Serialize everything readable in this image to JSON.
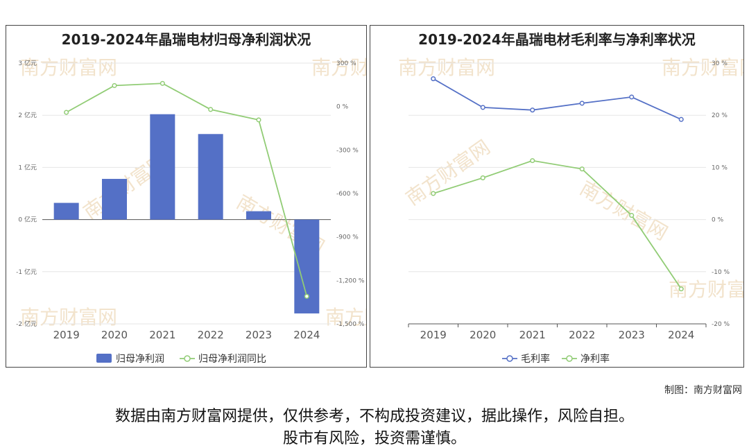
{
  "watermark": "南方财富网",
  "credit": "制图：南方财富网",
  "disclaimer_line1": "数据由南方财富网提供，仅供参考，不构成投资建议，据此操作，风险自担。",
  "disclaimer_line2": "股市有风险，投资需谨慎。",
  "chart_data": [
    {
      "type": "bar",
      "title": "2019-2024年晶瑞电材归母净利润状况",
      "categories": [
        "2019",
        "2020",
        "2021",
        "2022",
        "2023",
        "2024"
      ],
      "series": [
        {
          "name": "归母净利润",
          "type": "bar",
          "axis": "left",
          "color": "#5470c6",
          "values": [
            0.32,
            0.78,
            2.02,
            1.64,
            0.16,
            -1.8
          ]
        },
        {
          "name": "归母净利润同比",
          "type": "line",
          "axis": "right",
          "color": "#91cc75",
          "values": [
            -40,
            145,
            160,
            -20,
            -92,
            -1310
          ]
        }
      ],
      "left_axis": {
        "min": -2,
        "max": 3,
        "ticks": [
          3,
          2,
          1,
          0,
          -1,
          -2
        ],
        "tick_labels": [
          "3 亿元",
          "2 亿元",
          "1 亿元",
          "0 亿元",
          "-1 亿元",
          "-2 亿元"
        ]
      },
      "right_axis": {
        "min": -1500,
        "max": 300,
        "ticks": [
          300,
          0,
          -300,
          -600,
          -900,
          -1200,
          -1500
        ],
        "tick_labels": [
          "300 %",
          "0 %",
          "-300 %",
          "-600 %",
          "-900 %",
          "-1,200 %",
          "-1,500 %"
        ]
      },
      "grid": true,
      "legend": "bottom"
    },
    {
      "type": "line",
      "title": "2019-2024年晶瑞电材毛利率与净利率状况",
      "categories": [
        "2019",
        "2020",
        "2021",
        "2022",
        "2023",
        "2024"
      ],
      "series": [
        {
          "name": "毛利率",
          "color": "#5470c6",
          "values": [
            27.0,
            21.5,
            21.0,
            22.3,
            23.5,
            19.2
          ]
        },
        {
          "name": "净利率",
          "color": "#91cc75",
          "values": [
            5.0,
            8.0,
            11.3,
            9.7,
            0.8,
            -13.3
          ]
        }
      ],
      "right_axis": {
        "min": -20,
        "max": 30,
        "ticks": [
          30,
          20,
          10,
          0,
          -10,
          -20
        ],
        "tick_labels": [
          "30 %",
          "20 %",
          "10 %",
          "0 %",
          "-10 %",
          "-20 %"
        ]
      },
      "grid": true,
      "legend": "bottom"
    }
  ]
}
